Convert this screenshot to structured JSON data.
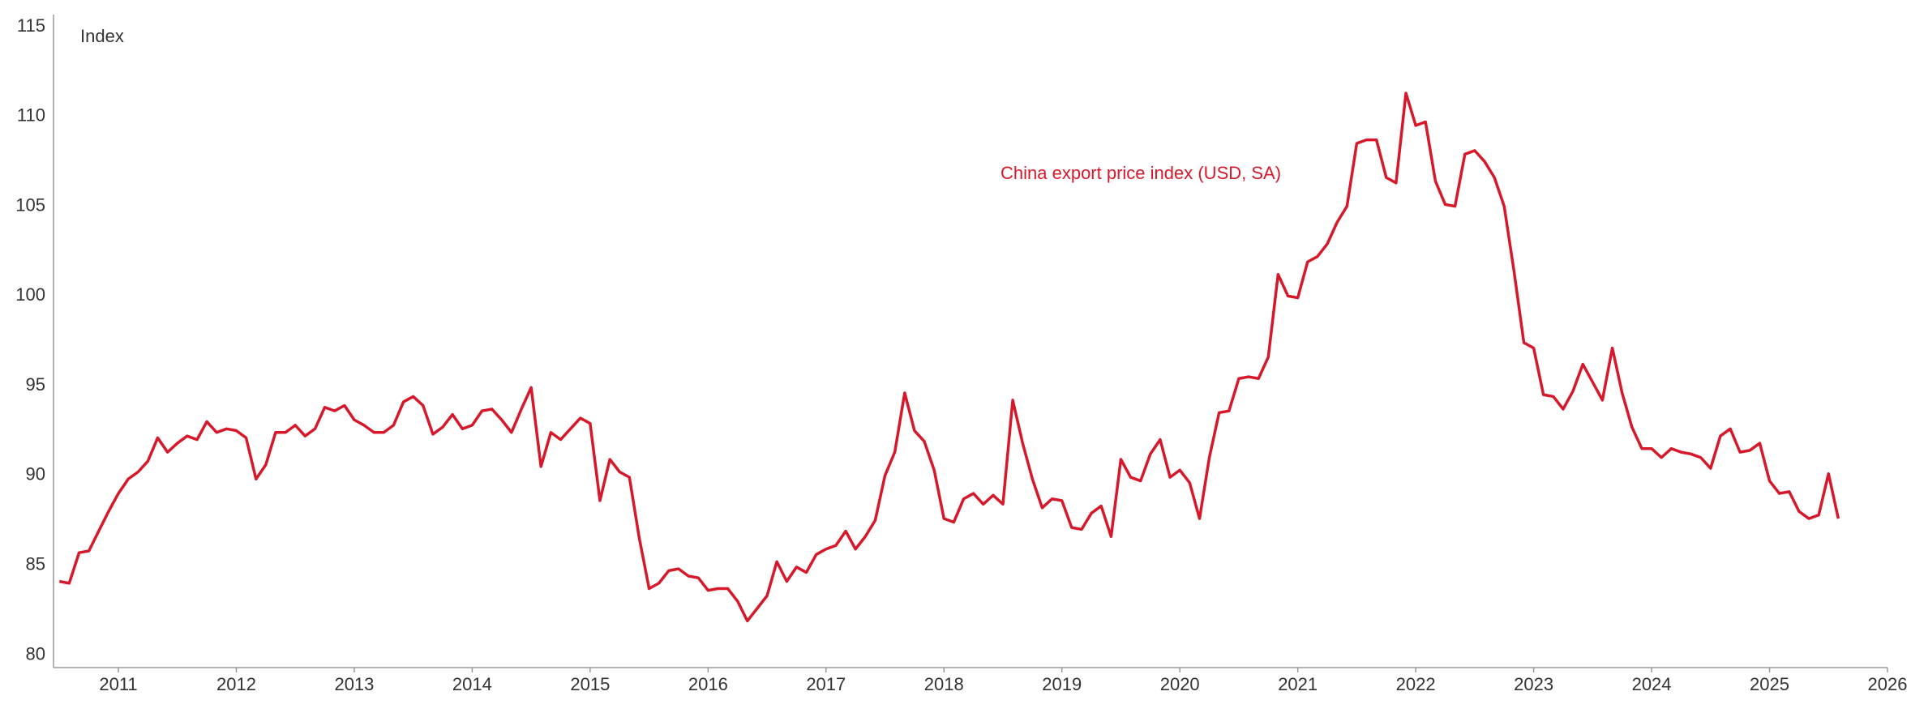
{
  "chart_data": {
    "type": "line",
    "y_label": "Index",
    "annotation": "China export price index (USD, SA)",
    "x": [
      2010.5,
      2010.583,
      2010.667,
      2010.75,
      2010.833,
      2010.917,
      2011,
      2011.083,
      2011.167,
      2011.25,
      2011.333,
      2011.417,
      2011.5,
      2011.583,
      2011.667,
      2011.75,
      2011.833,
      2011.917,
      2012,
      2012.083,
      2012.167,
      2012.25,
      2012.333,
      2012.417,
      2012.5,
      2012.583,
      2012.667,
      2012.75,
      2012.833,
      2012.917,
      2013,
      2013.083,
      2013.167,
      2013.25,
      2013.333,
      2013.417,
      2013.5,
      2013.583,
      2013.667,
      2013.75,
      2013.833,
      2013.917,
      2014,
      2014.083,
      2014.167,
      2014.25,
      2014.333,
      2014.417,
      2014.5,
      2014.583,
      2014.667,
      2014.75,
      2014.833,
      2014.917,
      2015,
      2015.083,
      2015.167,
      2015.25,
      2015.333,
      2015.417,
      2015.5,
      2015.583,
      2015.667,
      2015.75,
      2015.833,
      2015.917,
      2016,
      2016.083,
      2016.167,
      2016.25,
      2016.333,
      2016.417,
      2016.5,
      2016.583,
      2016.667,
      2016.75,
      2016.833,
      2016.917,
      2017,
      2017.083,
      2017.167,
      2017.25,
      2017.333,
      2017.417,
      2017.5,
      2017.583,
      2017.667,
      2017.75,
      2017.833,
      2017.917,
      2018,
      2018.083,
      2018.167,
      2018.25,
      2018.333,
      2018.417,
      2018.5,
      2018.583,
      2018.667,
      2018.75,
      2018.833,
      2018.917,
      2019,
      2019.083,
      2019.167,
      2019.25,
      2019.333,
      2019.417,
      2019.5,
      2019.583,
      2019.667,
      2019.75,
      2019.833,
      2019.917,
      2020,
      2020.083,
      2020.167,
      2020.25,
      2020.333,
      2020.417,
      2020.5,
      2020.583,
      2020.667,
      2020.75,
      2020.833,
      2020.917,
      2021,
      2021.083,
      2021.167,
      2021.25,
      2021.333,
      2021.417,
      2021.5,
      2021.583,
      2021.667,
      2021.75,
      2021.833,
      2021.917,
      2022,
      2022.083,
      2022.167,
      2022.25,
      2022.333,
      2022.417,
      2022.5,
      2022.583,
      2022.667,
      2022.75,
      2022.833,
      2022.917,
      2023,
      2023.083,
      2023.167,
      2023.25,
      2023.333,
      2023.417,
      2023.5,
      2023.583,
      2023.667,
      2023.75,
      2023.833,
      2023.917,
      2024,
      2024.083,
      2024.167,
      2024.25,
      2024.333,
      2024.417,
      2024.5,
      2024.583,
      2024.667,
      2024.75,
      2024.833,
      2024.917,
      2025,
      2025.083,
      2025.167,
      2025.25,
      2025.333,
      2025.417,
      2025.5,
      2025.583
    ],
    "series": [
      {
        "color": "#d7182a",
        "values": [
          84.1,
          84.0,
          85.7,
          85.8,
          86.9,
          88.0,
          89.0,
          89.8,
          90.2,
          90.8,
          92.1,
          91.3,
          91.8,
          92.2,
          92.0,
          93.0,
          92.4,
          92.6,
          92.5,
          92.1,
          89.8,
          90.6,
          92.4,
          92.4,
          92.8,
          92.2,
          92.6,
          93.8,
          93.6,
          93.9,
          93.1,
          92.8,
          92.4,
          92.4,
          92.8,
          94.1,
          94.4,
          93.9,
          92.3,
          92.7,
          93.4,
          92.6,
          92.8,
          93.6,
          93.7,
          93.1,
          92.4,
          93.7,
          94.9,
          90.5,
          92.4,
          92.0,
          92.6,
          93.2,
          92.9,
          88.6,
          90.9,
          90.2,
          89.9,
          86.5,
          83.7,
          84.0,
          84.7,
          84.8,
          84.4,
          84.3,
          83.6,
          83.7,
          83.7,
          83.0,
          81.9,
          82.6,
          83.3,
          85.2,
          84.1,
          84.9,
          84.6,
          85.6,
          85.9,
          86.1,
          86.9,
          85.9,
          86.6,
          87.5,
          90.0,
          91.3,
          94.6,
          92.5,
          91.9,
          90.3,
          87.6,
          87.4,
          88.7,
          89.0,
          88.4,
          88.9,
          88.4,
          94.2,
          91.8,
          89.8,
          88.2,
          88.7,
          88.6,
          87.1,
          87.0,
          87.9,
          88.3,
          86.6,
          90.9,
          89.9,
          89.7,
          91.2,
          92.0,
          89.9,
          90.3,
          89.6,
          87.6,
          91.0,
          93.5,
          93.6,
          95.4,
          95.5,
          95.4,
          96.6,
          101.2,
          100.0,
          99.9,
          101.9,
          102.2,
          102.9,
          104.1,
          105.0,
          108.5,
          108.7,
          108.7,
          106.6,
          106.3,
          111.3,
          109.5,
          109.7,
          106.4,
          105.1,
          105.0,
          107.9,
          108.1,
          107.5,
          106.6,
          105.0,
          101.4,
          97.4,
          97.1,
          94.5,
          94.4,
          93.7,
          94.7,
          96.2,
          95.2,
          94.2,
          97.1,
          94.6,
          92.7,
          91.5,
          91.5,
          91.0,
          91.5,
          91.3,
          91.2,
          91.0,
          90.4,
          92.2,
          92.6,
          91.3,
          91.4,
          91.8,
          89.7,
          89.0,
          89.1,
          88.0,
          87.6,
          87.8,
          90.1,
          87.6
        ]
      }
    ],
    "xlim": [
      2010.45,
      2026
    ],
    "xticks": [
      2011,
      2012,
      2013,
      2014,
      2015,
      2016,
      2017,
      2018,
      2019,
      2020,
      2021,
      2022,
      2023,
      2024,
      2025,
      2026
    ],
    "ylim": [
      79.3,
      115
    ],
    "yticks": [
      80,
      85,
      90,
      95,
      100,
      105,
      110,
      115
    ]
  }
}
